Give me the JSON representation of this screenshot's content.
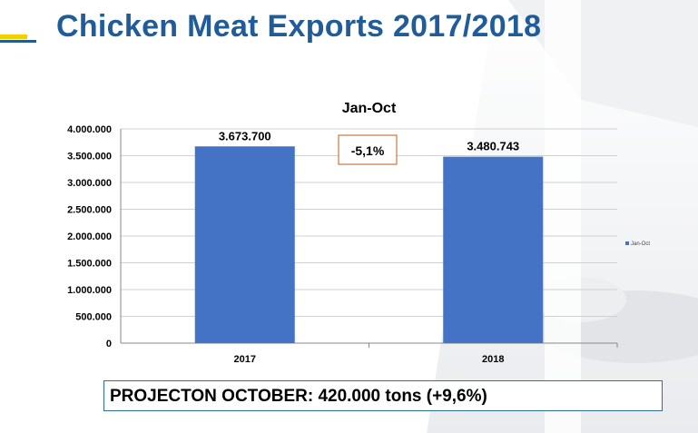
{
  "slide": {
    "title": "Chicken Meat Exports 2017/2018",
    "projection_note": "PROJECTON OCTOBER: 420.000 tons (+9,6%)"
  },
  "colors": {
    "title": "#1f5c99",
    "bar": "#4472c4",
    "accent_box_border": "#c55a11"
  },
  "chart_data": {
    "type": "bar",
    "title": "Jan-Oct",
    "categories": [
      "2017",
      "2018"
    ],
    "series": [
      {
        "name": "Jan-Oct",
        "values": [
          3673700,
          3480743
        ]
      }
    ],
    "data_labels": [
      "3.673.700",
      "3.480.743"
    ],
    "y_ticks": [
      "0",
      "500.000",
      "1.000.000",
      "1.500.000",
      "2.000.000",
      "2.500.000",
      "3.000.000",
      "3.500.000",
      "4.000.000"
    ],
    "ylim": [
      0,
      4000000
    ],
    "grid": true,
    "legend": "right",
    "annotation": "-5,1%"
  }
}
